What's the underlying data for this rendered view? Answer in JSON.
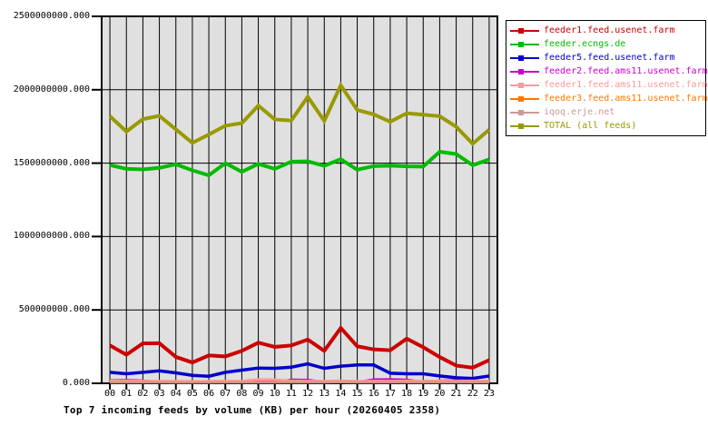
{
  "chart_data": {
    "type": "line",
    "title": "Top 7 incoming feeds by volume (KB) per hour (20260405 2358)",
    "xlabel": "",
    "ylabel": "",
    "x": [
      "00",
      "01",
      "02",
      "03",
      "04",
      "05",
      "06",
      "07",
      "08",
      "09",
      "10",
      "11",
      "12",
      "13",
      "14",
      "15",
      "16",
      "17",
      "18",
      "19",
      "20",
      "21",
      "22",
      "23"
    ],
    "ylim": [
      0,
      2500000000
    ],
    "grid": true,
    "plot_bg": "#e0e0e0",
    "grid_color": "#000000",
    "legend_position": "outside-top-right",
    "yticks": [
      {
        "value": 2500000000,
        "label": "2500000000.000"
      },
      {
        "value": 2000000000,
        "label": "2000000000.000"
      },
      {
        "value": 1500000000,
        "label": "1500000000.000"
      },
      {
        "value": 1000000000,
        "label": "1000000000.000"
      },
      {
        "value": 500000000,
        "label": "500000000.000"
      },
      {
        "value": 0,
        "label": "0.000"
      }
    ],
    "series": [
      {
        "name": "feeder1.feed.usenet.farm",
        "color": "#cc0000",
        "width": 4,
        "values": [
          258000000,
          195000000,
          272000000,
          273000000,
          180000000,
          142000000,
          190000000,
          183000000,
          221000000,
          277000000,
          248000000,
          258000000,
          298000000,
          221000000,
          377000000,
          252000000,
          231000000,
          225000000,
          304000000,
          246000000,
          179000000,
          121000000,
          106000000,
          158000000
        ]
      },
      {
        "name": "feeder.ecngs.de",
        "color": "#00bb00",
        "width": 4,
        "values": [
          1487000000,
          1461000000,
          1457000000,
          1468000000,
          1492000000,
          1451000000,
          1417000000,
          1500000000,
          1441000000,
          1495000000,
          1461000000,
          1510000000,
          1512000000,
          1482000000,
          1527000000,
          1455000000,
          1480000000,
          1483000000,
          1478000000,
          1477000000,
          1577000000,
          1562000000,
          1486000000,
          1525000000
        ]
      },
      {
        "name": "feeder5.feed.usenet.farm",
        "color": "#0000cc",
        "width": 3.5,
        "values": [
          75000000,
          65000000,
          75000000,
          85000000,
          71000000,
          54000000,
          48000000,
          75000000,
          90000000,
          104000000,
          102000000,
          110000000,
          133000000,
          102000000,
          117000000,
          125000000,
          125000000,
          69000000,
          65000000,
          65000000,
          50000000,
          38000000,
          33000000,
          50000000
        ]
      },
      {
        "name": "feeder2.feed.ams11.usenet.farm",
        "color": "#cc00cc",
        "width": 2,
        "values": [
          22000000,
          24000000,
          20000000,
          12000000,
          10000000,
          9000000,
          13000000,
          15000000,
          13000000,
          10000000,
          11000000,
          26000000,
          25000000,
          12000000,
          11000000,
          10000000,
          28000000,
          29000000,
          26000000,
          12000000,
          20000000,
          22000000,
          19000000,
          12000000
        ]
      },
      {
        "name": "feeder1.feed.ams11.usenet.farm",
        "color": "#ff9999",
        "width": 3,
        "values": [
          16000000,
          16000000,
          15000000,
          15000000,
          14000000,
          13000000,
          14000000,
          15000000,
          15000000,
          26000000,
          24000000,
          16000000,
          15000000,
          15000000,
          16000000,
          15000000,
          15000000,
          15000000,
          16000000,
          15000000,
          16000000,
          15000000,
          16000000,
          16000000
        ]
      },
      {
        "name": "feeder3.feed.ams11.usenet.farm",
        "color": "#ff7700",
        "width": 2,
        "values": [
          7000000,
          7000000,
          7000000,
          7000000,
          6000000,
          6000000,
          6000000,
          7000000,
          7000000,
          8000000,
          8000000,
          7000000,
          7000000,
          7000000,
          8000000,
          7000000,
          7000000,
          7000000,
          7000000,
          7000000,
          8000000,
          7000000,
          7000000,
          8000000
        ]
      },
      {
        "name": "iqoq.erje.net",
        "color": "#cc9999",
        "width": 2,
        "values": [
          5000000,
          5000000,
          5000000,
          5000000,
          4000000,
          4000000,
          4000000,
          5000000,
          5000000,
          5000000,
          5000000,
          5000000,
          5000000,
          5000000,
          6000000,
          5000000,
          5000000,
          5000000,
          5000000,
          5000000,
          5000000,
          5000000,
          5000000,
          5000000
        ]
      },
      {
        "name": "TOTAL (all feeds)",
        "color": "#999900",
        "width": 4,
        "values": [
          1820000000,
          1715000000,
          1800000000,
          1822000000,
          1730000000,
          1638000000,
          1695000000,
          1755000000,
          1772000000,
          1892000000,
          1798000000,
          1790000000,
          1952000000,
          1788000000,
          2030000000,
          1862000000,
          1832000000,
          1782000000,
          1840000000,
          1830000000,
          1820000000,
          1748000000,
          1632000000,
          1728000000
        ]
      }
    ]
  }
}
